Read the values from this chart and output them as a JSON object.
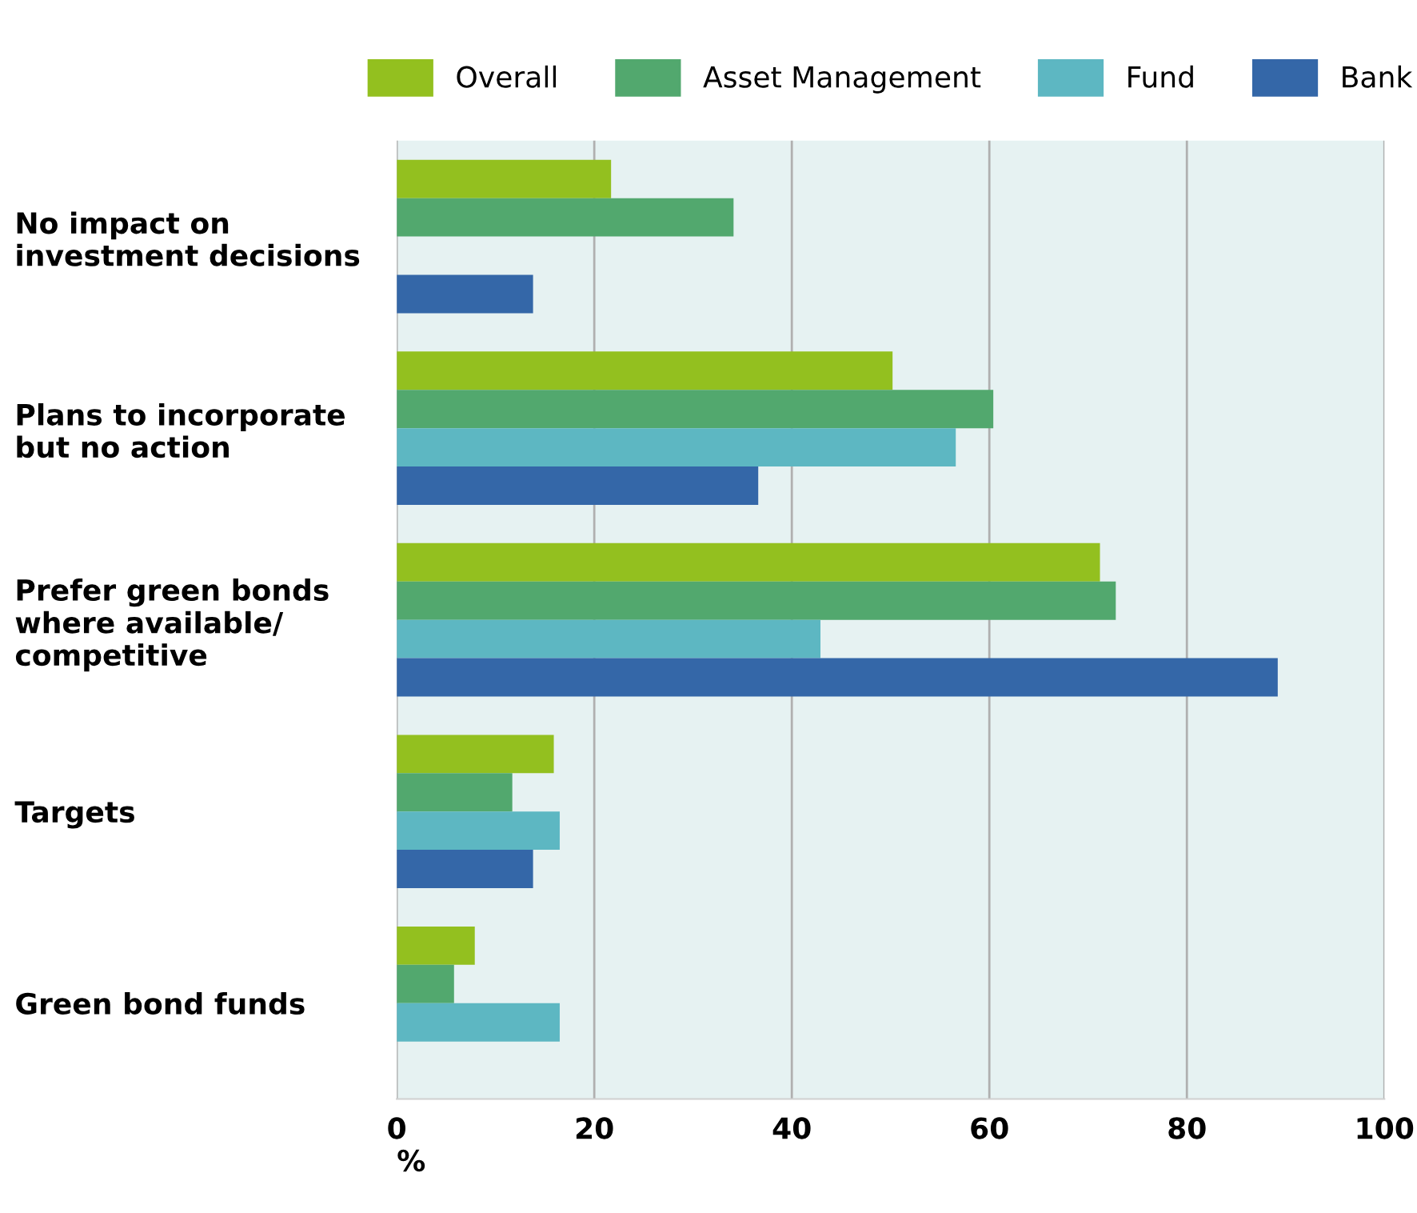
{
  "chart_data": {
    "type": "bar",
    "orientation": "horizontal",
    "categories": [
      "No impact on\ninvestment decisions",
      "Plans to incorporate\nbut no action",
      "Prefer green bonds\nwhere available/\ncompetitive",
      "Targets",
      "Green bond funds"
    ],
    "series": [
      {
        "name": "Overall",
        "color": "#93c01f",
        "values": [
          21.7,
          50.2,
          71.2,
          15.9,
          7.9
        ]
      },
      {
        "name": "Asset Management",
        "color": "#52a86e",
        "values": [
          34.1,
          60.4,
          72.8,
          11.7,
          5.8
        ]
      },
      {
        "name": "Fund",
        "color": "#5db7c2",
        "values": [
          null,
          56.6,
          42.9,
          16.5,
          16.5
        ]
      },
      {
        "name": "Bank",
        "color": "#3467a8",
        "values": [
          13.8,
          36.6,
          89.2,
          13.8,
          null
        ]
      }
    ],
    "xlabel": "%",
    "xlim": [
      0,
      100
    ],
    "xticks": [
      0,
      20,
      40,
      60,
      80,
      100
    ],
    "grid": "x",
    "legend": "top"
  }
}
